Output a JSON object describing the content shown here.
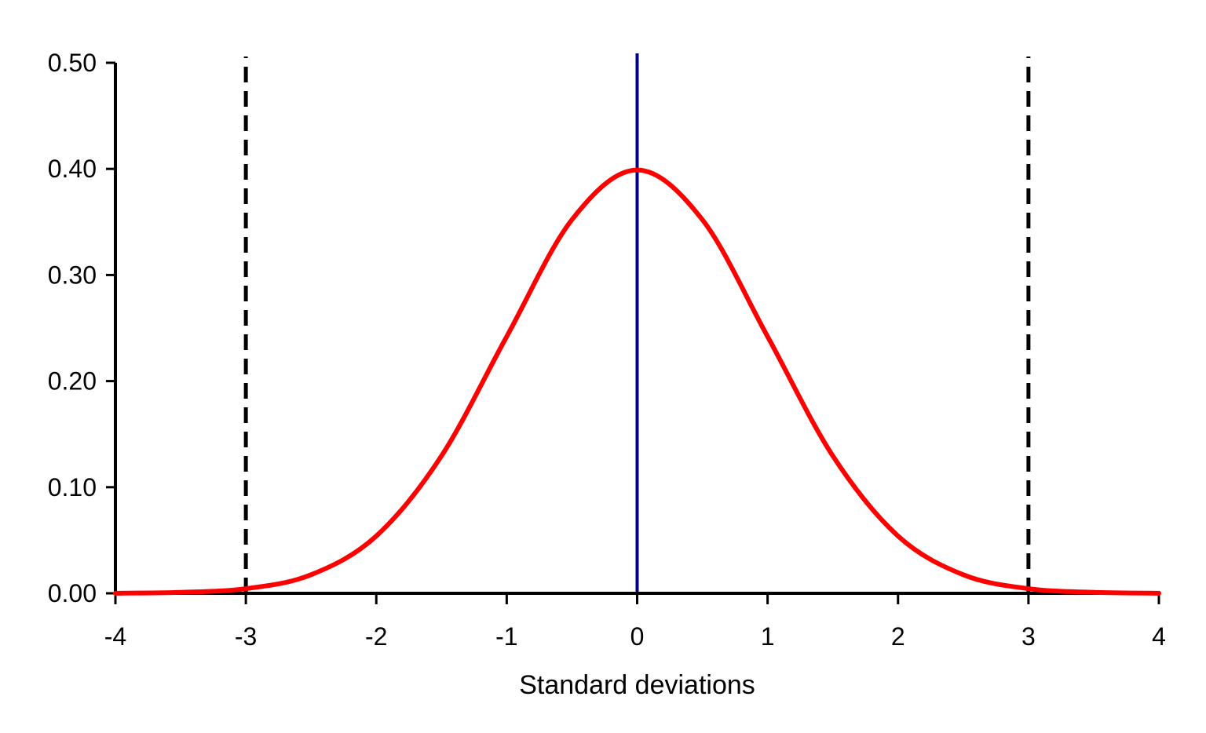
{
  "chart_data": {
    "type": "line",
    "title": "",
    "xlabel": "Standard deviations",
    "ylabel": "",
    "xlim": [
      -4,
      4
    ],
    "ylim": [
      0,
      0.5
    ],
    "x_ticks": [
      "-4",
      "-3",
      "-2",
      "-1",
      "0",
      "1",
      "2",
      "3",
      "4"
    ],
    "y_ticks": [
      "0.00",
      "0.10",
      "0.20",
      "0.30",
      "0.40",
      "0.50"
    ],
    "grid": false,
    "legend": "none",
    "series": [
      {
        "color": "#ff0000",
        "x": [
          -4.0,
          -3.5,
          -3.0,
          -2.5,
          -2.0,
          -1.5,
          -1.0,
          -0.5,
          0.0,
          0.5,
          1.0,
          1.5,
          2.0,
          2.5,
          3.0,
          3.5,
          4.0
        ],
        "y": [
          0.0001,
          0.0009,
          0.0044,
          0.0175,
          0.054,
          0.1295,
          0.242,
          0.3521,
          0.3989,
          0.3521,
          0.242,
          0.1295,
          0.054,
          0.0175,
          0.0044,
          0.0009,
          0.0001
        ]
      }
    ],
    "reference_lines": [
      {
        "x": -3,
        "style": "dashed",
        "color": "#000000"
      },
      {
        "x": 0,
        "style": "solid",
        "color": "#000080"
      },
      {
        "x": 3,
        "style": "dashed",
        "color": "#000000"
      }
    ]
  }
}
